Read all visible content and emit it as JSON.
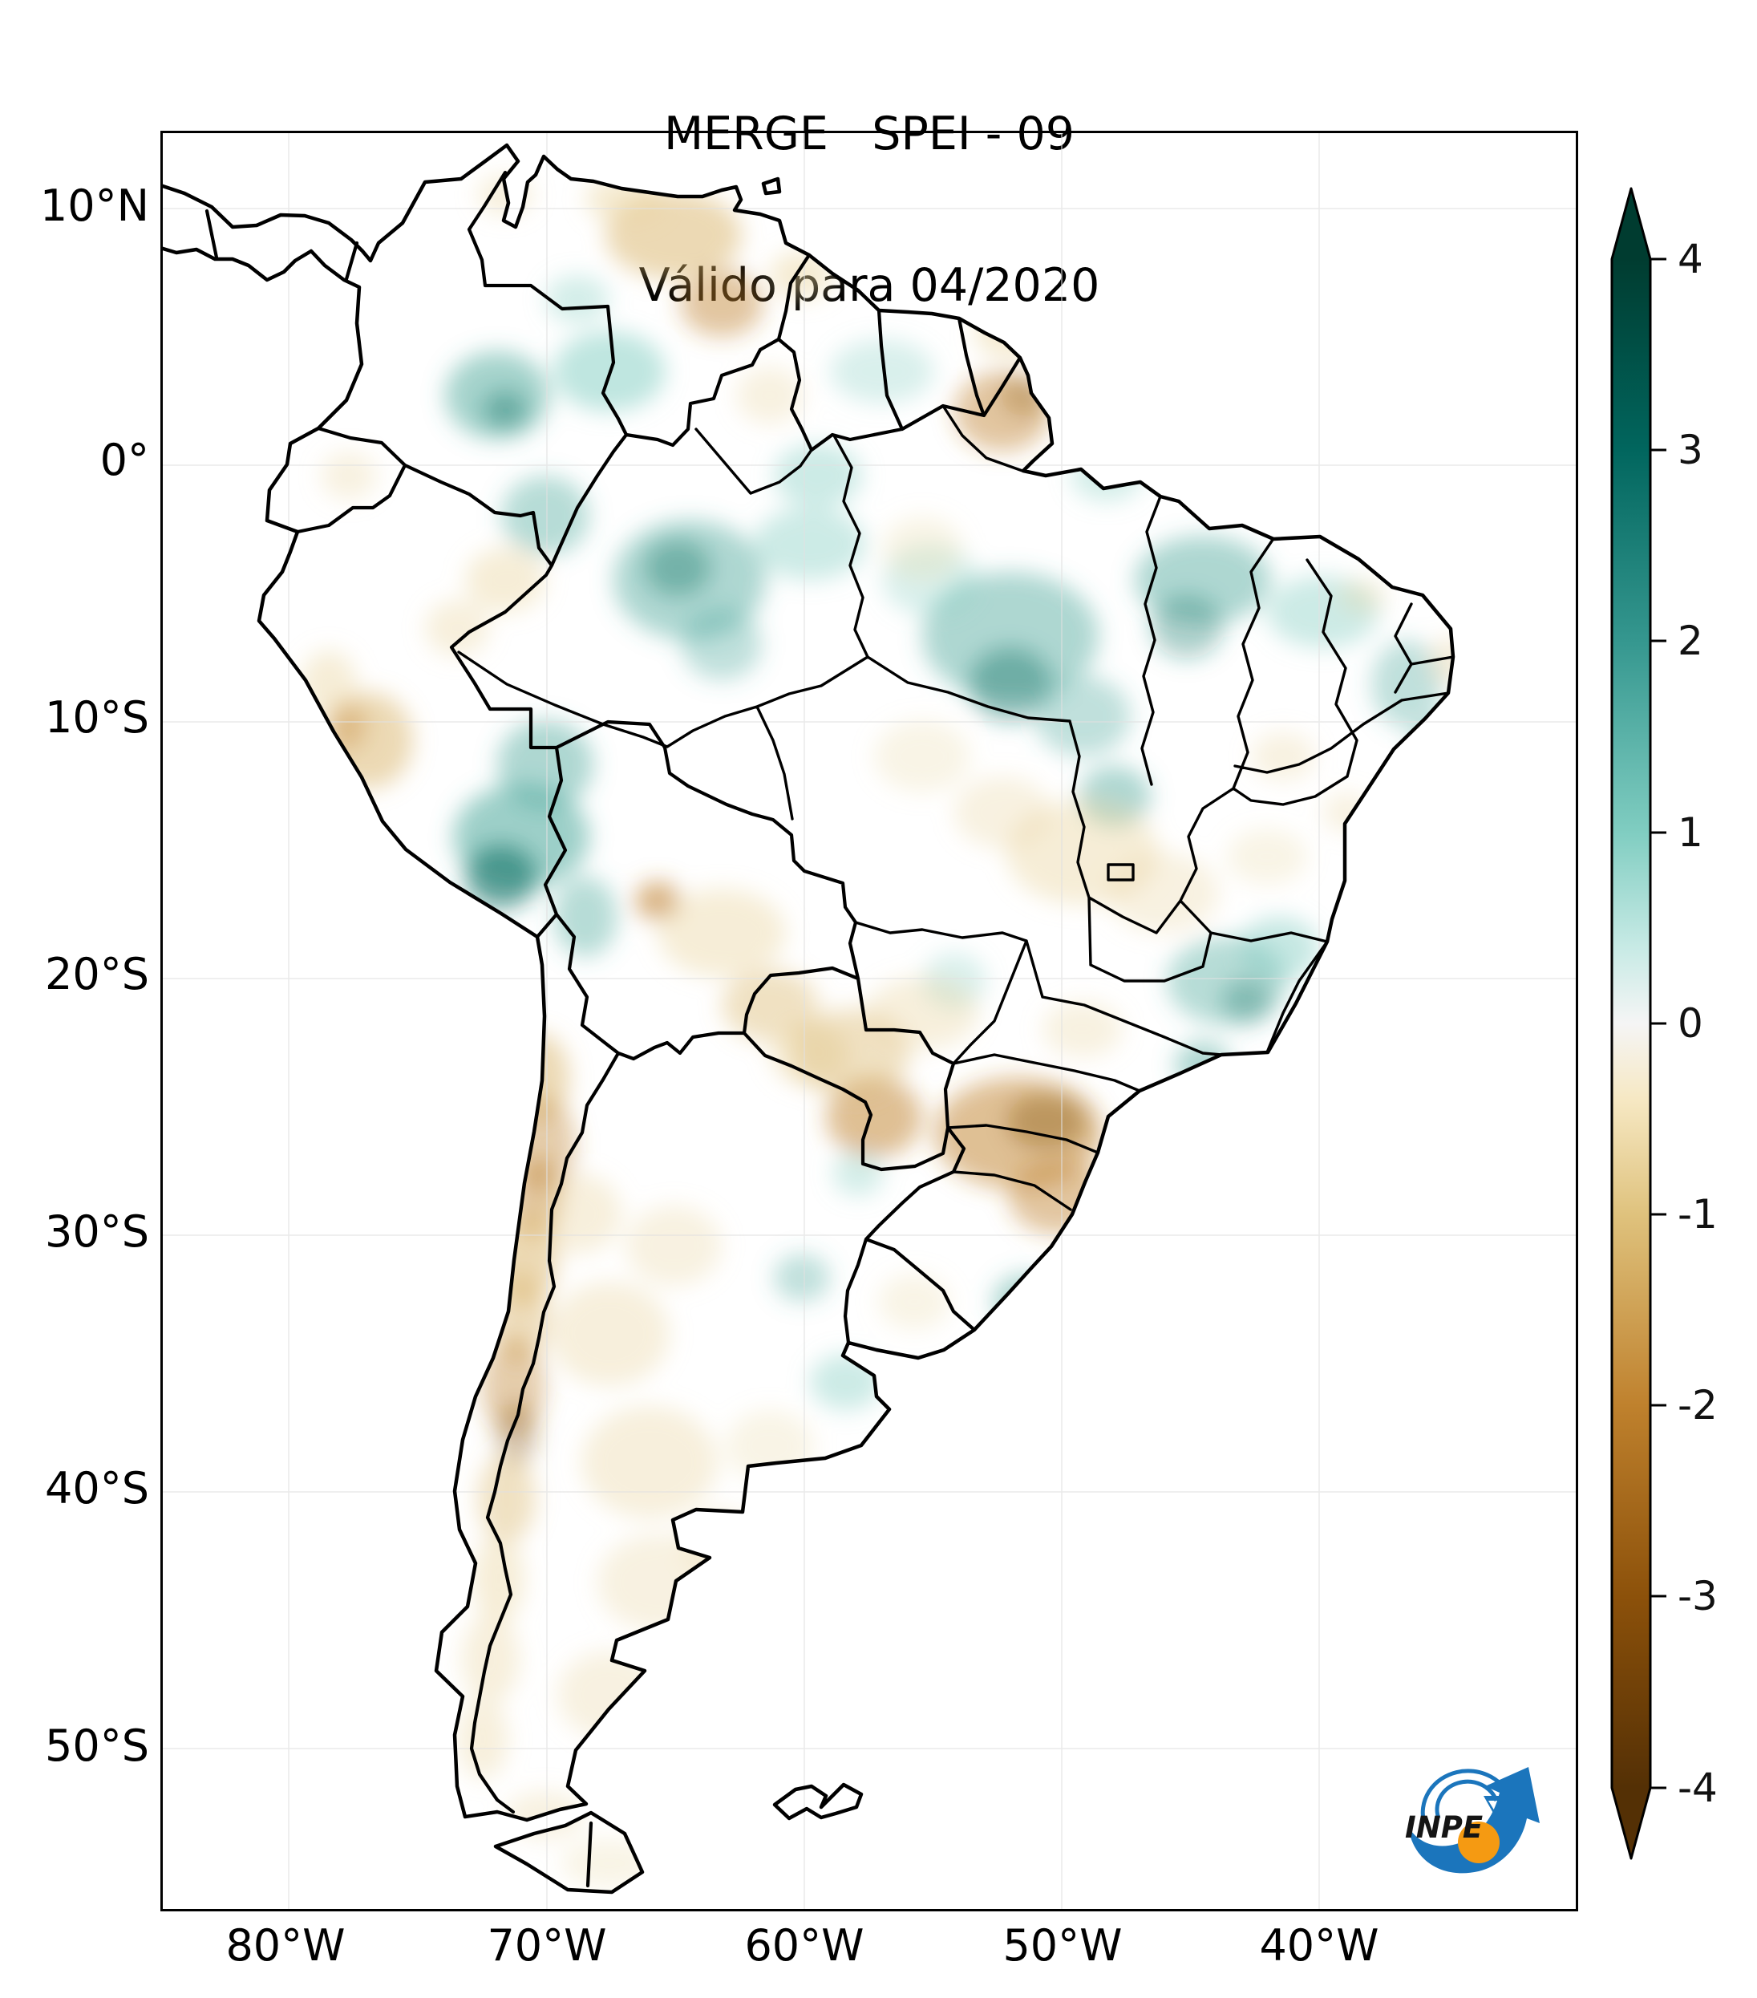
{
  "title": {
    "line1": "MERGE   SPEI - 09",
    "line2": "Válido para 04/2020"
  },
  "axes": {
    "y_labels": [
      "10°N",
      "0°",
      "10°S",
      "20°S",
      "30°S",
      "40°S",
      "50°S"
    ],
    "x_labels": [
      "80°W",
      "70°W",
      "60°W",
      "50°W",
      "40°W"
    ]
  },
  "colorbar": {
    "ticks": [
      "4",
      "3",
      "2",
      "1",
      "0",
      "-1",
      "-2",
      "-3",
      "-4"
    ],
    "max": 4,
    "min": -4,
    "max_color": "#003c30",
    "min_color": "#543005",
    "stops": [
      "#003c30",
      "#01665e",
      "#35978f",
      "#80cdc1",
      "#c7eae5",
      "#f5f5f5",
      "#f6e8c3",
      "#dfc27d",
      "#bf812d",
      "#8c510a",
      "#543005"
    ]
  },
  "logo": {
    "text": "INPE",
    "blue": "#1b75bc",
    "orange": "#f59a12"
  },
  "map_data": {
    "type": "choropleth-map",
    "variable": "SPEI-09 (9-month Standardized Precipitation-Evapotranspiration Index)",
    "valid_for": "04/2020",
    "region": "South America",
    "index_range": [
      -4,
      4
    ],
    "wet_anomaly_regions": [
      "W Colombia",
      "NW Amazonas",
      "central Pará",
      "Maranhão",
      "SE Peru / Titicaca",
      "Minas Gerais / São Paulo",
      "Bahia coast"
    ],
    "dry_anomaly_regions": [
      "N Venezuela",
      "N Roraima / N Pará",
      "coastal Peru",
      "Bolivia lowlands",
      "Paraguay",
      "Paraná / Santa Catarina",
      "Andes Chile-Argentina border",
      "W Argentina / Patagonia"
    ],
    "palette": {
      "t1": "#80cdc1",
      "t2": "#4ba79a",
      "t3": "#1d7a6e",
      "b1": "#e8d29b",
      "b2": "#d9b36a",
      "b3": "#bf812d",
      "b4": "#8a5a16"
    },
    "field_blobs": [
      [
        420,
        330,
        65,
        55,
        "t2",
        0.5
      ],
      [
        430,
        348,
        28,
        24,
        "t3",
        0.45
      ],
      [
        560,
        300,
        70,
        50,
        "t1",
        0.5
      ],
      [
        520,
        210,
        40,
        30,
        "t1",
        0.35
      ],
      [
        480,
        480,
        55,
        50,
        "t2",
        0.4
      ],
      [
        660,
        560,
        95,
        75,
        "t2",
        0.45
      ],
      [
        645,
        545,
        42,
        36,
        "t3",
        0.4
      ],
      [
        700,
        640,
        50,
        45,
        "t2",
        0.35
      ],
      [
        820,
        430,
        55,
        40,
        "t1",
        0.4
      ],
      [
        810,
        515,
        70,
        45,
        "t1",
        0.4
      ],
      [
        900,
        300,
        65,
        40,
        "t1",
        0.3
      ],
      [
        1180,
        430,
        45,
        32,
        "t1",
        0.35
      ],
      [
        1060,
        630,
        110,
        80,
        "t2",
        0.45
      ],
      [
        1060,
        690,
        52,
        46,
        "t3",
        0.45
      ],
      [
        1150,
        730,
        60,
        50,
        "t2",
        0.35
      ],
      [
        960,
        560,
        60,
        45,
        "t1",
        0.3
      ],
      [
        1300,
        560,
        85,
        55,
        "t2",
        0.45
      ],
      [
        1280,
        618,
        45,
        40,
        "t3",
        0.35
      ],
      [
        1450,
        600,
        70,
        45,
        "t1",
        0.4
      ],
      [
        1555,
        690,
        45,
        55,
        "t2",
        0.35
      ],
      [
        1590,
        770,
        28,
        35,
        "t2",
        0.45
      ],
      [
        1190,
        830,
        45,
        38,
        "t2",
        0.45
      ],
      [
        480,
        790,
        60,
        55,
        "t2",
        0.45
      ],
      [
        450,
        880,
        85,
        65,
        "t2",
        0.55
      ],
      [
        425,
        930,
        45,
        40,
        "t3",
        0.65
      ],
      [
        530,
        980,
        40,
        50,
        "t2",
        0.4
      ],
      [
        1330,
        1060,
        75,
        55,
        "t2",
        0.4
      ],
      [
        1395,
        1020,
        50,
        40,
        "t1",
        0.45
      ],
      [
        1355,
        1085,
        32,
        28,
        "t3",
        0.35
      ],
      [
        1300,
        1165,
        35,
        30,
        "t2",
        0.45
      ],
      [
        1080,
        1460,
        42,
        35,
        "t2",
        0.45
      ],
      [
        800,
        1430,
        35,
        30,
        "t2",
        0.35
      ],
      [
        855,
        1560,
        45,
        35,
        "t1",
        0.4
      ],
      [
        870,
        1300,
        32,
        28,
        "t1",
        0.35
      ],
      [
        990,
        1060,
        40,
        35,
        "t1",
        0.3
      ],
      [
        640,
        130,
        85,
        55,
        "b2",
        0.5
      ],
      [
        700,
        215,
        52,
        42,
        "b3",
        0.45
      ],
      [
        580,
        85,
        50,
        30,
        "b1",
        0.45
      ],
      [
        430,
        80,
        35,
        25,
        "b1",
        0.35
      ],
      [
        800,
        180,
        40,
        30,
        "b1",
        0.45
      ],
      [
        760,
        330,
        42,
        36,
        "b1",
        0.3
      ],
      [
        1050,
        350,
        60,
        50,
        "b3",
        0.45
      ],
      [
        1078,
        330,
        30,
        26,
        "b4",
        0.3
      ],
      [
        1060,
        250,
        45,
        35,
        "b1",
        0.45
      ],
      [
        950,
        520,
        50,
        40,
        "b1",
        0.25
      ],
      [
        430,
        560,
        50,
        40,
        "b1",
        0.4
      ],
      [
        370,
        620,
        40,
        35,
        "b1",
        0.35
      ],
      [
        235,
        430,
        35,
        30,
        "b1",
        0.3
      ],
      [
        260,
        760,
        55,
        60,
        "b2",
        0.5
      ],
      [
        232,
        742,
        25,
        30,
        "b3",
        0.35
      ],
      [
        210,
        690,
        35,
        42,
        "b1",
        0.4
      ],
      [
        1150,
        900,
        95,
        65,
        "b1",
        0.4
      ],
      [
        1250,
        950,
        70,
        50,
        "b1",
        0.3
      ],
      [
        1050,
        850,
        60,
        45,
        "b1",
        0.3
      ],
      [
        950,
        780,
        60,
        45,
        "b1",
        0.25
      ],
      [
        620,
        960,
        28,
        24,
        "b3",
        0.6
      ],
      [
        700,
        1000,
        80,
        55,
        "b1",
        0.4
      ],
      [
        760,
        1090,
        60,
        45,
        "b2",
        0.4
      ],
      [
        810,
        1150,
        50,
        40,
        "b1",
        0.4
      ],
      [
        890,
        1230,
        60,
        50,
        "b3",
        0.5
      ],
      [
        860,
        1150,
        75,
        55,
        "b2",
        0.4
      ],
      [
        1070,
        1250,
        105,
        70,
        "b3",
        0.5
      ],
      [
        1105,
        1235,
        50,
        35,
        "b4",
        0.4
      ],
      [
        1120,
        1330,
        62,
        46,
        "b3",
        0.45
      ],
      [
        950,
        1100,
        70,
        45,
        "b1",
        0.35
      ],
      [
        1150,
        1120,
        50,
        35,
        "b1",
        0.3
      ],
      [
        940,
        1460,
        45,
        35,
        "b1",
        0.25
      ],
      [
        1400,
        780,
        40,
        30,
        "b1",
        0.3
      ],
      [
        1480,
        850,
        30,
        25,
        "b1",
        0.3
      ],
      [
        1380,
        905,
        50,
        35,
        "b1",
        0.25
      ],
      [
        1500,
        580,
        30,
        22,
        "b1",
        0.3
      ],
      [
        1610,
        660,
        25,
        30,
        "b1",
        0.35
      ],
      [
        470,
        1180,
        40,
        55,
        "b2",
        0.5
      ],
      [
        480,
        1265,
        38,
        60,
        "b3",
        0.4
      ],
      [
        468,
        1330,
        32,
        50,
        "b3",
        0.45
      ],
      [
        455,
        1405,
        40,
        60,
        "b2",
        0.5
      ],
      [
        448,
        1480,
        36,
        55,
        "b2",
        0.45
      ],
      [
        440,
        1565,
        40,
        60,
        "b3",
        0.4
      ],
      [
        444,
        1625,
        26,
        40,
        "b4",
        0.35
      ],
      [
        432,
        1705,
        36,
        55,
        "b2",
        0.4
      ],
      [
        422,
        1805,
        32,
        55,
        "b1",
        0.4
      ],
      [
        412,
        1905,
        36,
        55,
        "b1",
        0.35
      ],
      [
        402,
        2005,
        32,
        50,
        "b1",
        0.35
      ],
      [
        520,
        1350,
        55,
        50,
        "b1",
        0.35
      ],
      [
        560,
        1500,
        75,
        65,
        "b1",
        0.35
      ],
      [
        640,
        1390,
        60,
        50,
        "b1",
        0.3
      ],
      [
        610,
        1660,
        85,
        70,
        "b1",
        0.35
      ],
      [
        620,
        1810,
        75,
        60,
        "b1",
        0.3
      ],
      [
        560,
        1950,
        65,
        55,
        "b1",
        0.3
      ],
      [
        760,
        1640,
        55,
        45,
        "b1",
        0.25
      ],
      [
        700,
        1760,
        50,
        40,
        "b1",
        0.3
      ],
      [
        480,
        2100,
        50,
        30,
        "b1",
        0.3
      ],
      [
        560,
        2160,
        60,
        30,
        "b1",
        0.25
      ]
    ]
  }
}
